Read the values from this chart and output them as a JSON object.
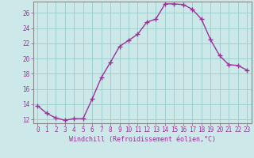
{
  "hours": [
    0,
    1,
    2,
    3,
    4,
    5,
    6,
    7,
    8,
    9,
    10,
    11,
    12,
    13,
    14,
    15,
    16,
    17,
    18,
    19,
    20,
    21,
    22,
    23
  ],
  "values": [
    13.8,
    12.8,
    12.2,
    11.9,
    12.1,
    12.1,
    14.7,
    17.5,
    19.5,
    21.6,
    22.4,
    23.2,
    24.8,
    25.2,
    27.2,
    27.2,
    27.1,
    26.5,
    25.2,
    22.5,
    20.4,
    19.2,
    19.1,
    18.5
  ],
  "line_color": "#993399",
  "marker": "+",
  "marker_size": 4,
  "marker_linewidth": 1.0,
  "bg_color": "#cce8e8",
  "grid_color": "#99cccc",
  "xlabel": "Windchill (Refroidissement éolien,°C)",
  "xlim": [
    -0.5,
    23.5
  ],
  "ylim": [
    11.5,
    27.5
  ],
  "yticks": [
    12,
    14,
    16,
    18,
    20,
    22,
    24,
    26
  ],
  "xtick_labels": [
    "0",
    "1",
    "2",
    "3",
    "4",
    "5",
    "6",
    "7",
    "8",
    "9",
    "10",
    "11",
    "12",
    "13",
    "14",
    "15",
    "16",
    "17",
    "18",
    "19",
    "20",
    "21",
    "22",
    "23"
  ],
  "tick_color": "#993399",
  "label_color": "#993399",
  "axis_color": "#888888",
  "font_family": "monospace",
  "tick_fontsize": 5.5,
  "xlabel_fontsize": 6.0,
  "linewidth": 1.0
}
